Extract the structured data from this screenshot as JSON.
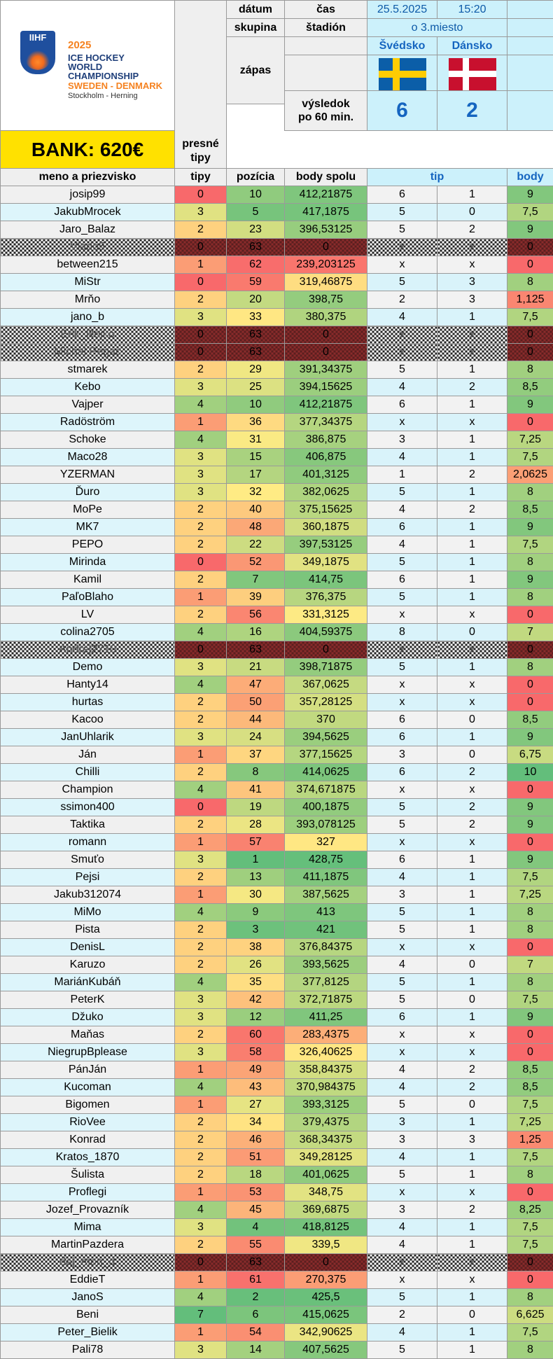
{
  "header": {
    "logo": {
      "year": "2025",
      "line1": "ICE HOCKEY",
      "line2": "WORLD",
      "line3": "CHAMPIONSHIP",
      "line4": "SWEDEN - DENMARK",
      "line5": "Stockholm - Herning",
      "brand": "IIHF"
    },
    "bank": "BANK: 620€",
    "presne_tipy": "presné\ntipy",
    "presne_line1": "presné",
    "presne_line2": "tipy",
    "labels": {
      "datum": "dátum",
      "cas": "čas",
      "skupina": "skupina",
      "stadion": "štadión",
      "zapas": "zápas",
      "vysledok_line1": "výsledok",
      "vysledok_line2": "po 60 min."
    },
    "date": "25.5.2025",
    "time": "15:20",
    "group": "o 3.miesto",
    "team1": "Švédsko",
    "team2": "Dánsko",
    "score1": "6",
    "score2": "2",
    "columns": {
      "name": "meno a priezvisko",
      "tipy": "tipy",
      "pozicia": "pozícia",
      "body_spolu": "body spolu",
      "tip": "tip",
      "body": "body"
    }
  },
  "colors": {
    "green": "#63be7b",
    "yellow": "#ffeb84",
    "red": "#f8696b"
  },
  "rows": [
    {
      "name": "josip99",
      "tipy": "0",
      "poz": "10",
      "spolu": "412,21875",
      "t1": "6",
      "t2": "1",
      "body": "9"
    },
    {
      "name": "JakubMrocek",
      "tipy": "3",
      "poz": "5",
      "spolu": "417,1875",
      "t1": "5",
      "t2": "0",
      "body": "7,5"
    },
    {
      "name": "Jaro_Balaz",
      "tipy": "2",
      "poz": "23",
      "spolu": "396,53125",
      "t1": "5",
      "t2": "2",
      "body": "9"
    },
    {
      "name": "Vlado5",
      "tipy": "0",
      "poz": "63",
      "spolu": "0",
      "t1": "x",
      "t2": "x",
      "body": "0",
      "chk": true
    },
    {
      "name": "between215",
      "tipy": "1",
      "poz": "62",
      "spolu": "239,203125",
      "t1": "x",
      "t2": "x",
      "body": "0"
    },
    {
      "name": "MiStr",
      "tipy": "0",
      "poz": "59",
      "spolu": "319,46875",
      "t1": "5",
      "t2": "3",
      "body": "8"
    },
    {
      "name": "Mrňo",
      "tipy": "2",
      "poz": "20",
      "spolu": "398,75",
      "t1": "2",
      "t2": "3",
      "body": "1,125"
    },
    {
      "name": "jano_b",
      "tipy": "3",
      "poz": "33",
      "spolu": "380,375",
      "t1": "4",
      "t2": "1",
      "body": "7,5"
    },
    {
      "name": "Erik_Rojko",
      "tipy": "0",
      "poz": "63",
      "spolu": "0",
      "t1": "x",
      "t2": "x",
      "body": "0",
      "chk": true
    },
    {
      "name": "Michal Pegac",
      "tipy": "0",
      "poz": "63",
      "spolu": "0",
      "t1": "x",
      "t2": "x",
      "body": "0",
      "chk": true
    },
    {
      "name": "stmarek",
      "tipy": "2",
      "poz": "29",
      "spolu": "391,34375",
      "t1": "5",
      "t2": "1",
      "body": "8"
    },
    {
      "name": "Kebo",
      "tipy": "3",
      "poz": "25",
      "spolu": "394,15625",
      "t1": "4",
      "t2": "2",
      "body": "8,5"
    },
    {
      "name": "Vajper",
      "tipy": "4",
      "poz": "10",
      "spolu": "412,21875",
      "t1": "6",
      "t2": "1",
      "body": "9"
    },
    {
      "name": "Radöström",
      "tipy": "1",
      "poz": "36",
      "spolu": "377,34375",
      "t1": "x",
      "t2": "x",
      "body": "0"
    },
    {
      "name": "Schoke",
      "tipy": "4",
      "poz": "31",
      "spolu": "386,875",
      "t1": "3",
      "t2": "1",
      "body": "7,25"
    },
    {
      "name": "Maco28",
      "tipy": "3",
      "poz": "15",
      "spolu": "406,875",
      "t1": "4",
      "t2": "1",
      "body": "7,5"
    },
    {
      "name": "YZERMAN",
      "tipy": "3",
      "poz": "17",
      "spolu": "401,3125",
      "t1": "1",
      "t2": "2",
      "body": "2,0625"
    },
    {
      "name": "Ďuro",
      "tipy": "3",
      "poz": "32",
      "spolu": "382,0625",
      "t1": "5",
      "t2": "1",
      "body": "8"
    },
    {
      "name": "MoPe",
      "tipy": "2",
      "poz": "40",
      "spolu": "375,15625",
      "t1": "4",
      "t2": "2",
      "body": "8,5"
    },
    {
      "name": "MK7",
      "tipy": "2",
      "poz": "48",
      "spolu": "360,1875",
      "t1": "6",
      "t2": "1",
      "body": "9"
    },
    {
      "name": "PEPO",
      "tipy": "2",
      "poz": "22",
      "spolu": "397,53125",
      "t1": "4",
      "t2": "1",
      "body": "7,5"
    },
    {
      "name": "Mirinda",
      "tipy": "0",
      "poz": "52",
      "spolu": "349,1875",
      "t1": "5",
      "t2": "1",
      "body": "8"
    },
    {
      "name": "Kamil",
      "tipy": "2",
      "poz": "7",
      "spolu": "414,75",
      "t1": "6",
      "t2": "1",
      "body": "9"
    },
    {
      "name": "PaľoBlaho",
      "tipy": "1",
      "poz": "39",
      "spolu": "376,375",
      "t1": "5",
      "t2": "1",
      "body": "8"
    },
    {
      "name": "LV",
      "tipy": "2",
      "poz": "56",
      "spolu": "331,3125",
      "t1": "x",
      "t2": "x",
      "body": "0"
    },
    {
      "name": "colina2705",
      "tipy": "4",
      "poz": "16",
      "spolu": "404,59375",
      "t1": "8",
      "t2": "0",
      "body": "7"
    },
    {
      "name": "Andrej2710",
      "tipy": "0",
      "poz": "63",
      "spolu": "0",
      "t1": "x",
      "t2": "x",
      "body": "0",
      "chk": true
    },
    {
      "name": "Demo",
      "tipy": "3",
      "poz": "21",
      "spolu": "398,71875",
      "t1": "5",
      "t2": "1",
      "body": "8"
    },
    {
      "name": "Hanty14",
      "tipy": "4",
      "poz": "47",
      "spolu": "367,0625",
      "t1": "x",
      "t2": "x",
      "body": "0"
    },
    {
      "name": "hurtas",
      "tipy": "2",
      "poz": "50",
      "spolu": "357,28125",
      "t1": "x",
      "t2": "x",
      "body": "0"
    },
    {
      "name": "Kacoo",
      "tipy": "2",
      "poz": "44",
      "spolu": "370",
      "t1": "6",
      "t2": "0",
      "body": "8,5"
    },
    {
      "name": "JanUhlarik",
      "tipy": "3",
      "poz": "24",
      "spolu": "394,5625",
      "t1": "6",
      "t2": "1",
      "body": "9"
    },
    {
      "name": "Ján",
      "tipy": "1",
      "poz": "37",
      "spolu": "377,15625",
      "t1": "3",
      "t2": "0",
      "body": "6,75"
    },
    {
      "name": "Chilli",
      "tipy": "2",
      "poz": "8",
      "spolu": "414,0625",
      "t1": "6",
      "t2": "2",
      "body": "10"
    },
    {
      "name": "Champion",
      "tipy": "4",
      "poz": "41",
      "spolu": "374,671875",
      "t1": "x",
      "t2": "x",
      "body": "0"
    },
    {
      "name": "ssimon400",
      "tipy": "0",
      "poz": "19",
      "spolu": "400,1875",
      "t1": "5",
      "t2": "2",
      "body": "9"
    },
    {
      "name": "Taktika",
      "tipy": "2",
      "poz": "28",
      "spolu": "393,078125",
      "t1": "5",
      "t2": "2",
      "body": "9"
    },
    {
      "name": "romann",
      "tipy": "1",
      "poz": "57",
      "spolu": "327",
      "t1": "x",
      "t2": "x",
      "body": "0"
    },
    {
      "name": "Smuťo",
      "tipy": "3",
      "poz": "1",
      "spolu": "428,75",
      "t1": "6",
      "t2": "1",
      "body": "9"
    },
    {
      "name": "Pejsi",
      "tipy": "2",
      "poz": "13",
      "spolu": "411,1875",
      "t1": "4",
      "t2": "1",
      "body": "7,5"
    },
    {
      "name": "Jakub312074",
      "tipy": "1",
      "poz": "30",
      "spolu": "387,5625",
      "t1": "3",
      "t2": "1",
      "body": "7,25"
    },
    {
      "name": "MiMo",
      "tipy": "4",
      "poz": "9",
      "spolu": "413",
      "t1": "5",
      "t2": "1",
      "body": "8"
    },
    {
      "name": "Pista",
      "tipy": "2",
      "poz": "3",
      "spolu": "421",
      "t1": "5",
      "t2": "1",
      "body": "8"
    },
    {
      "name": "DenisL",
      "tipy": "2",
      "poz": "38",
      "spolu": "376,84375",
      "t1": "x",
      "t2": "x",
      "body": "0"
    },
    {
      "name": "Karuzo",
      "tipy": "2",
      "poz": "26",
      "spolu": "393,5625",
      "t1": "4",
      "t2": "0",
      "body": "7"
    },
    {
      "name": "MariánKubáň",
      "tipy": "4",
      "poz": "35",
      "spolu": "377,8125",
      "t1": "5",
      "t2": "1",
      "body": "8"
    },
    {
      "name": "PeterK",
      "tipy": "3",
      "poz": "42",
      "spolu": "372,71875",
      "t1": "5",
      "t2": "0",
      "body": "7,5"
    },
    {
      "name": "Džuko",
      "tipy": "3",
      "poz": "12",
      "spolu": "411,25",
      "t1": "6",
      "t2": "1",
      "body": "9"
    },
    {
      "name": "Maňas",
      "tipy": "2",
      "poz": "60",
      "spolu": "283,4375",
      "t1": "x",
      "t2": "x",
      "body": "0"
    },
    {
      "name": "NiegrupBplease",
      "tipy": "3",
      "poz": "58",
      "spolu": "326,40625",
      "t1": "x",
      "t2": "x",
      "body": "0"
    },
    {
      "name": "PánJán",
      "tipy": "1",
      "poz": "49",
      "spolu": "358,84375",
      "t1": "4",
      "t2": "2",
      "body": "8,5"
    },
    {
      "name": "Kucoman",
      "tipy": "4",
      "poz": "43",
      "spolu": "370,984375",
      "t1": "4",
      "t2": "2",
      "body": "8,5"
    },
    {
      "name": "Bigomen",
      "tipy": "1",
      "poz": "27",
      "spolu": "393,3125",
      "t1": "5",
      "t2": "0",
      "body": "7,5"
    },
    {
      "name": "RioVee",
      "tipy": "2",
      "poz": "34",
      "spolu": "379,4375",
      "t1": "3",
      "t2": "1",
      "body": "7,25"
    },
    {
      "name": "Konrad",
      "tipy": "2",
      "poz": "46",
      "spolu": "368,34375",
      "t1": "3",
      "t2": "3",
      "body": "1,25"
    },
    {
      "name": "Kratos_1870",
      "tipy": "2",
      "poz": "51",
      "spolu": "349,28125",
      "t1": "4",
      "t2": "1",
      "body": "7,5"
    },
    {
      "name": "Šulista",
      "tipy": "2",
      "poz": "18",
      "spolu": "401,0625",
      "t1": "5",
      "t2": "1",
      "body": "8"
    },
    {
      "name": "Proflegi",
      "tipy": "1",
      "poz": "53",
      "spolu": "348,75",
      "t1": "x",
      "t2": "x",
      "body": "0"
    },
    {
      "name": "Jozef_Provazník",
      "tipy": "4",
      "poz": "45",
      "spolu": "369,6875",
      "t1": "3",
      "t2": "2",
      "body": "8,25"
    },
    {
      "name": "Mima",
      "tipy": "3",
      "poz": "4",
      "spolu": "418,8125",
      "t1": "4",
      "t2": "1",
      "body": "7,5"
    },
    {
      "name": "MartinPazdera",
      "tipy": "2",
      "poz": "55",
      "spolu": "339,5",
      "t1": "4",
      "t2": "1",
      "body": "7,5"
    },
    {
      "name": "daj_mon_d",
      "tipy": "0",
      "poz": "63",
      "spolu": "0",
      "t1": "x",
      "t2": "x",
      "body": "0",
      "chk": true
    },
    {
      "name": "EddieT",
      "tipy": "1",
      "poz": "61",
      "spolu": "270,375",
      "t1": "x",
      "t2": "x",
      "body": "0"
    },
    {
      "name": "JanoS",
      "tipy": "4",
      "poz": "2",
      "spolu": "425,5",
      "t1": "5",
      "t2": "1",
      "body": "8"
    },
    {
      "name": "Beni",
      "tipy": "7",
      "poz": "6",
      "spolu": "415,0625",
      "t1": "2",
      "t2": "0",
      "body": "6,625"
    },
    {
      "name": "Peter_Bielik",
      "tipy": "1",
      "poz": "54",
      "spolu": "342,90625",
      "t1": "4",
      "t2": "1",
      "body": "7,5"
    },
    {
      "name": "Pali78",
      "tipy": "3",
      "poz": "14",
      "spolu": "407,5625",
      "t1": "5",
      "t2": "1",
      "body": "8"
    }
  ]
}
